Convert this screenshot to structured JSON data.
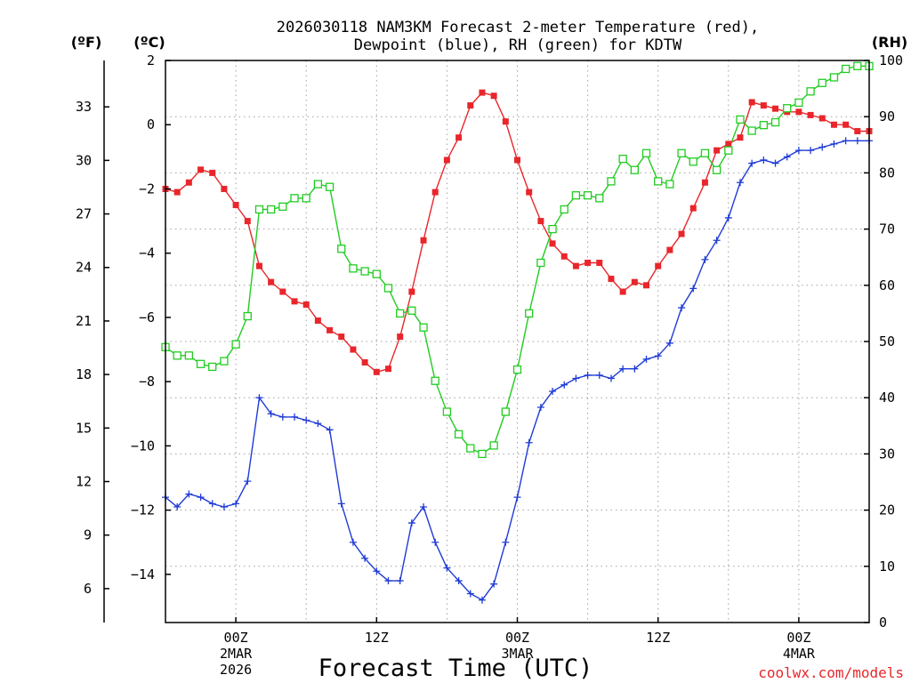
{
  "chart_data": {
    "type": "line",
    "title_line1": "2026030118 NAM3KM Forecast 2-meter Temperature (red),",
    "title_line2": "Dewpoint (blue), RH (green) for KDTW",
    "xlabel": "Forecast Time (UTC)",
    "watermark": "coolwx.com/models",
    "units": {
      "fahrenheit": "(ºF)",
      "celsius": "(ºC)",
      "rh": "(RH)"
    },
    "x_range_hours": [
      -6,
      54
    ],
    "celsius_range": [
      -15.5,
      2
    ],
    "rh_range": [
      0,
      100
    ],
    "x_ticks": [
      {
        "hour": 0,
        "label": "00Z",
        "sub1": "2MAR",
        "sub2": "2026"
      },
      {
        "hour": 12,
        "label": "12Z",
        "sub1": "",
        "sub2": ""
      },
      {
        "hour": 24,
        "label": "00Z",
        "sub1": "3MAR",
        "sub2": ""
      },
      {
        "hour": 36,
        "label": "12Z",
        "sub1": "",
        "sub2": ""
      },
      {
        "hour": 48,
        "label": "00Z",
        "sub1": "4MAR",
        "sub2": ""
      }
    ],
    "celsius_ticks": [
      "2",
      "0",
      "−2",
      "−4",
      "−6",
      "−8",
      "−10",
      "−12",
      "−14"
    ],
    "fahrenheit_ticks": [
      "33",
      "30",
      "27",
      "24",
      "21",
      "18",
      "15",
      "12",
      "9",
      "6"
    ],
    "rh_ticks": [
      "100",
      "90",
      "80",
      "70",
      "60",
      "50",
      "40",
      "30",
      "20",
      "10",
      "0"
    ],
    "series": [
      {
        "name": "Temperature",
        "axis": "celsius",
        "color": "#e8262b",
        "marker": "filled-square",
        "values": [
          -2.0,
          -2.1,
          -1.8,
          -1.4,
          -1.5,
          -2.0,
          -2.5,
          -3.0,
          -4.4,
          -4.9,
          -5.2,
          -5.5,
          -5.6,
          -6.1,
          -6.4,
          -6.6,
          -7.0,
          -7.4,
          -7.7,
          -7.6,
          -6.6,
          -5.2,
          -3.6,
          -2.1,
          -1.1,
          -0.4,
          0.6,
          1.0,
          0.9,
          0.1,
          -1.1,
          -2.1,
          -3.0,
          -3.7,
          -4.1,
          -4.4,
          -4.3,
          -4.3,
          -4.8,
          -5.2,
          -4.9,
          -5.0,
          -4.4,
          -3.9,
          -3.4,
          -2.6,
          -1.8,
          -0.8,
          -0.6,
          -0.4,
          0.7,
          0.6,
          0.5,
          0.4,
          0.4,
          0.3,
          0.2,
          0.0,
          0.0,
          -0.2,
          -0.2
        ]
      },
      {
        "name": "Dewpoint",
        "axis": "celsius",
        "color": "#1f3bd6",
        "marker": "plus",
        "values": [
          -11.6,
          -11.9,
          -11.5,
          -11.6,
          -11.8,
          -11.9,
          -11.8,
          -11.1,
          -8.5,
          -9.0,
          -9.1,
          -9.1,
          -9.2,
          -9.3,
          -9.5,
          -11.8,
          -13.0,
          -13.5,
          -13.9,
          -14.2,
          -14.2,
          -12.4,
          -11.9,
          -13.0,
          -13.8,
          -14.2,
          -14.6,
          -14.8,
          -14.3,
          -13.0,
          -11.6,
          -9.9,
          -8.8,
          -8.3,
          -8.1,
          -7.9,
          -7.8,
          -7.8,
          -7.9,
          -7.6,
          -7.6,
          -7.3,
          -7.2,
          -6.8,
          -5.7,
          -5.1,
          -4.2,
          -3.6,
          -2.9,
          -1.8,
          -1.2,
          -1.1,
          -1.2,
          -1.0,
          -0.8,
          -0.8,
          -0.7,
          -0.6,
          -0.5,
          -0.5,
          -0.5
        ]
      },
      {
        "name": "RH",
        "axis": "rh",
        "color": "#22cc22",
        "marker": "open-square",
        "values": [
          49,
          47.5,
          47.5,
          46,
          45.5,
          46.5,
          49.5,
          54.5,
          73.5,
          73.5,
          74,
          75.5,
          75.5,
          78,
          77.5,
          66.5,
          63,
          62.5,
          62,
          59.5,
          55,
          55.5,
          52.5,
          43,
          37.5,
          33.5,
          31,
          30,
          31.5,
          37.5,
          45,
          55,
          64,
          70,
          73.5,
          76,
          76,
          75.5,
          78.5,
          82.5,
          80.5,
          83.5,
          78.5,
          78,
          83.5,
          82,
          83.5,
          80.5,
          84,
          89.5,
          87.5,
          88.5,
          89,
          91.5,
          92.5,
          94.5,
          96,
          97,
          98.5,
          99,
          99
        ]
      }
    ]
  }
}
